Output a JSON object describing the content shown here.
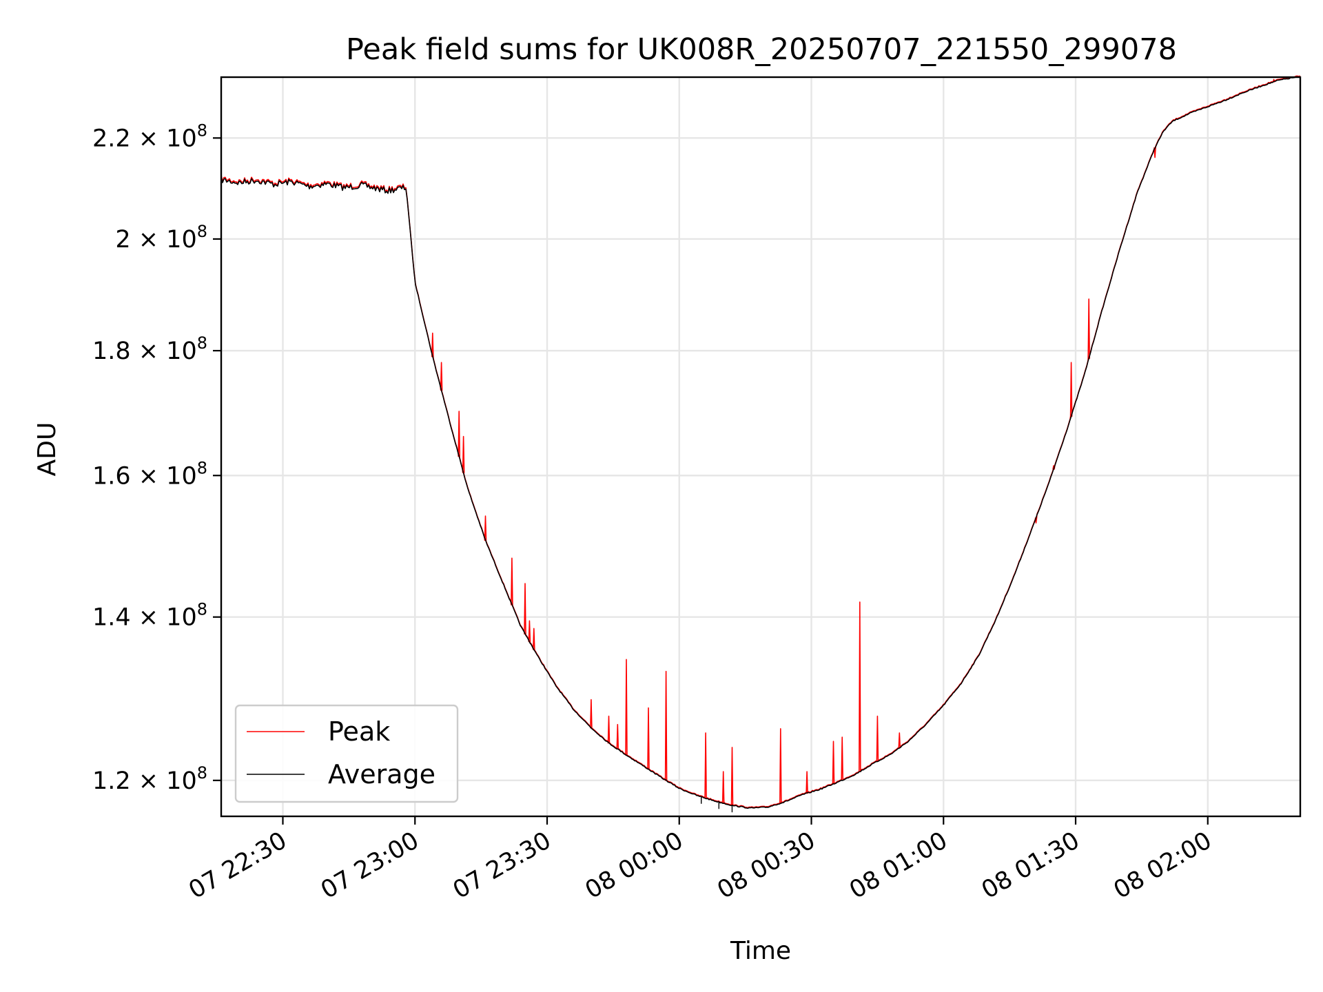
{
  "chart_data": {
    "type": "line",
    "title": "Peak field sums for UK008R_20250707_221550_299078",
    "xlabel": "Time",
    "ylabel": "ADU",
    "y_scale": "log",
    "grid": true,
    "legend_position": "lower-left",
    "x_range": [
      "2025-07-07 22:16",
      "2025-07-08 02:21"
    ],
    "ylim": [
      116000000,
      233000000
    ],
    "x_ticks": [
      {
        "t": "2025-07-07 22:30",
        "label": "07 22:30"
      },
      {
        "t": "2025-07-07 23:00",
        "label": "07 23:00"
      },
      {
        "t": "2025-07-07 23:30",
        "label": "07 23:30"
      },
      {
        "t": "2025-07-08 00:00",
        "label": "08 00:00"
      },
      {
        "t": "2025-07-08 00:30",
        "label": "08 00:30"
      },
      {
        "t": "2025-07-08 01:00",
        "label": "08 01:00"
      },
      {
        "t": "2025-07-08 01:30",
        "label": "08 01:30"
      },
      {
        "t": "2025-07-08 02:00",
        "label": "08 02:00"
      }
    ],
    "y_ticks": [
      {
        "value": 120000000,
        "mantissa": "1.2",
        "exp": "8"
      },
      {
        "value": 140000000,
        "mantissa": "1.4",
        "exp": "8"
      },
      {
        "value": 160000000,
        "mantissa": "1.6",
        "exp": "8"
      },
      {
        "value": 180000000,
        "mantissa": "1.8",
        "exp": "8"
      },
      {
        "value": 200000000,
        "mantissa": "2",
        "exp": "8"
      },
      {
        "value": 220000000,
        "mantissa": "2.2",
        "exp": "8"
      }
    ],
    "series": [
      {
        "name": "Average",
        "color": "#000000",
        "x": [
          "2025-07-07 22:16",
          "2025-07-07 22:20",
          "2025-07-07 22:24",
          "2025-07-07 22:28",
          "2025-07-07 22:32",
          "2025-07-07 22:36",
          "2025-07-07 22:40",
          "2025-07-07 22:44",
          "2025-07-07 22:48",
          "2025-07-07 22:52",
          "2025-07-07 22:54",
          "2025-07-07 22:56",
          "2025-07-07 22:58",
          "2025-07-07 23:00",
          "2025-07-07 23:04",
          "2025-07-07 23:08",
          "2025-07-07 23:12",
          "2025-07-07 23:16",
          "2025-07-07 23:20",
          "2025-07-07 23:24",
          "2025-07-07 23:28",
          "2025-07-07 23:32",
          "2025-07-07 23:36",
          "2025-07-07 23:40",
          "2025-07-07 23:44",
          "2025-07-07 23:48",
          "2025-07-07 23:52",
          "2025-07-07 23:56",
          "2025-07-08 00:00",
          "2025-07-08 00:04",
          "2025-07-08 00:08",
          "2025-07-08 00:12",
          "2025-07-08 00:16",
          "2025-07-08 00:20",
          "2025-07-08 00:24",
          "2025-07-08 00:28",
          "2025-07-08 00:32",
          "2025-07-08 00:36",
          "2025-07-08 00:40",
          "2025-07-08 00:44",
          "2025-07-08 00:48",
          "2025-07-08 00:52",
          "2025-07-08 00:56",
          "2025-07-08 01:00",
          "2025-07-08 01:04",
          "2025-07-08 01:08",
          "2025-07-08 01:12",
          "2025-07-08 01:16",
          "2025-07-08 01:20",
          "2025-07-08 01:24",
          "2025-07-08 01:28",
          "2025-07-08 01:32",
          "2025-07-08 01:36",
          "2025-07-08 01:40",
          "2025-07-08 01:44",
          "2025-07-08 01:48",
          "2025-07-08 01:50",
          "2025-07-08 01:52",
          "2025-07-08 01:56",
          "2025-07-08 02:00",
          "2025-07-08 02:04",
          "2025-07-08 02:08",
          "2025-07-08 02:12",
          "2025-07-08 02:16",
          "2025-07-08 02:20"
        ],
        "values": [
          211500000,
          210900000,
          211400000,
          210600000,
          211100000,
          210200000,
          210700000,
          209900000,
          210400000,
          209600000,
          209300000,
          209700000,
          209900000,
          192000000,
          179000000,
          168000000,
          158000000,
          150500000,
          144500000,
          138800000,
          134800000,
          131200000,
          128300000,
          126100000,
          124300000,
          122900000,
          121600000,
          120300000,
          119100000,
          118300000,
          117700000,
          117200000,
          116900000,
          117000000,
          117600000,
          118400000,
          119000000,
          119800000,
          120700000,
          121900000,
          123000000,
          124500000,
          126500000,
          128800000,
          131500000,
          135000000,
          139800000,
          145500000,
          152000000,
          159000000,
          167000000,
          176000000,
          187000000,
          198000000,
          209000000,
          218000000,
          221500000,
          223500000,
          225200000,
          226600000,
          228000000,
          229600000,
          231000000,
          232300000,
          233000000
        ]
      },
      {
        "name": "Peak",
        "color": "#ff0000",
        "spikes": [
          {
            "t": "2025-07-07 23:04",
            "value": 183000000
          },
          {
            "t": "2025-07-07 23:06",
            "value": 178000000
          },
          {
            "t": "2025-07-07 23:10",
            "value": 170000000
          },
          {
            "t": "2025-07-07 23:11",
            "value": 166000000
          },
          {
            "t": "2025-07-07 23:16",
            "value": 154000000
          },
          {
            "t": "2025-07-07 23:22",
            "value": 148000000
          },
          {
            "t": "2025-07-07 23:25",
            "value": 144500000
          },
          {
            "t": "2025-07-07 23:26",
            "value": 139500000
          },
          {
            "t": "2025-07-07 23:27",
            "value": 138500000
          },
          {
            "t": "2025-07-07 23:40",
            "value": 129500000
          },
          {
            "t": "2025-07-07 23:44",
            "value": 127500000
          },
          {
            "t": "2025-07-07 23:46",
            "value": 126500000
          },
          {
            "t": "2025-07-07 23:48",
            "value": 134500000
          },
          {
            "t": "2025-07-07 23:53",
            "value": 128500000
          },
          {
            "t": "2025-07-07 23:57",
            "value": 133000000
          },
          {
            "t": "2025-07-08 00:06",
            "value": 125500000
          },
          {
            "t": "2025-07-08 00:10",
            "value": 121000000
          },
          {
            "t": "2025-07-08 00:12",
            "value": 123800000
          },
          {
            "t": "2025-07-08 00:23",
            "value": 126000000
          },
          {
            "t": "2025-07-08 00:29",
            "value": 121000000
          },
          {
            "t": "2025-07-08 00:35",
            "value": 124500000
          },
          {
            "t": "2025-07-08 00:37",
            "value": 125000000
          },
          {
            "t": "2025-07-08 00:41",
            "value": 142000000
          },
          {
            "t": "2025-07-08 00:45",
            "value": 127500000
          },
          {
            "t": "2025-07-08 00:50",
            "value": 125500000
          },
          {
            "t": "2025-07-08 01:21",
            "value": 153000000
          },
          {
            "t": "2025-07-08 01:25",
            "value": 161500000
          },
          {
            "t": "2025-07-08 01:29",
            "value": 178000000
          },
          {
            "t": "2025-07-08 01:33",
            "value": 189000000
          },
          {
            "t": "2025-07-08 01:48",
            "value": 216000000
          },
          {
            "t": "2025-07-08 02:04",
            "value": 228000000
          },
          {
            "t": "2025-07-08 02:15",
            "value": 232500000
          }
        ]
      }
    ]
  }
}
